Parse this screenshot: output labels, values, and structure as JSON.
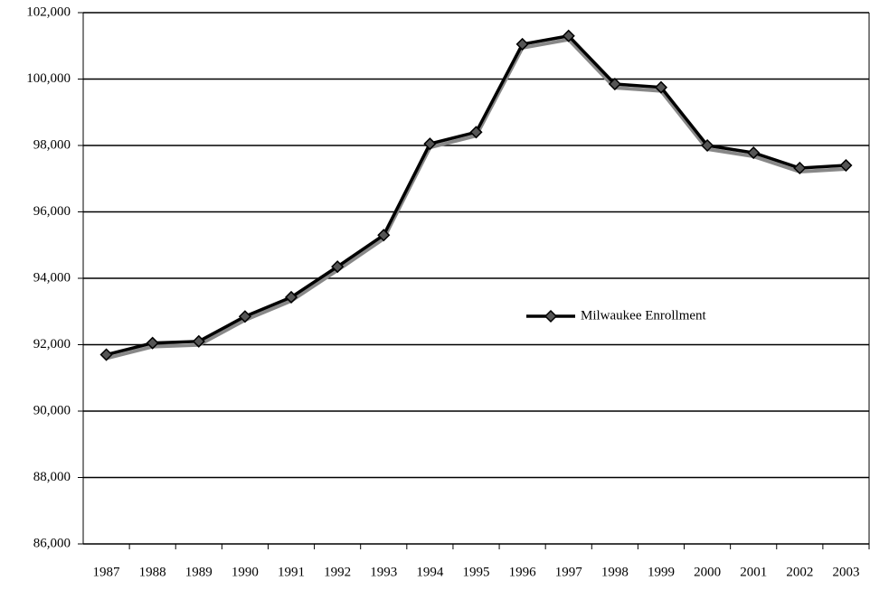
{
  "chart_data": {
    "type": "line",
    "categories": [
      "1987",
      "1988",
      "1989",
      "1990",
      "1991",
      "1992",
      "1993",
      "1994",
      "1995",
      "1996",
      "1997",
      "1998",
      "1999",
      "2000",
      "2001",
      "2002",
      "2003"
    ],
    "series": [
      {
        "name": "Milwaukee Enrollment",
        "color": "#000000",
        "values": [
          91700,
          92050,
          92100,
          92850,
          93430,
          94350,
          95300,
          98050,
          98400,
          101050,
          101300,
          99850,
          99750,
          98000,
          97780,
          97320,
          97400
        ]
      }
    ],
    "ylim": [
      86000,
      102000
    ],
    "yticks": [
      {
        "value": 86000,
        "label": "86,000"
      },
      {
        "value": 88000,
        "label": "88,000"
      },
      {
        "value": 90000,
        "label": "90,000"
      },
      {
        "value": 92000,
        "label": "92,000"
      },
      {
        "value": 94000,
        "label": "94,000"
      },
      {
        "value": 96000,
        "label": "96,000"
      },
      {
        "value": 98000,
        "label": "98,000"
      },
      {
        "value": 100000,
        "label": "100,000"
      },
      {
        "value": 102000,
        "label": "102,000"
      }
    ],
    "grid": true,
    "legend": "right"
  }
}
